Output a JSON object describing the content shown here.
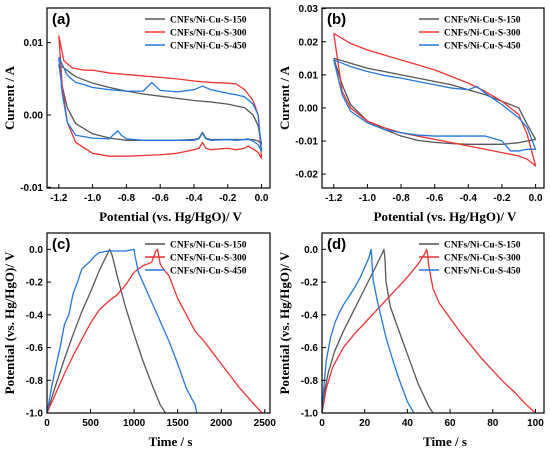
{
  "chart_data": [
    {
      "panel_label": "(a)",
      "type": "line",
      "xlabel": "Potential (vs. Hg/HgO)/ V",
      "ylabel": "Current / A",
      "xlim": [
        -1.27,
        0.05
      ],
      "ylim": [
        -0.0101,
        0.0148
      ],
      "xticks": [
        -1.2,
        -1.0,
        -0.8,
        -0.6,
        -0.4,
        -0.2,
        0.0
      ],
      "xtick_labels": [
        "-1.2",
        "-1.0",
        "-0.8",
        "-0.6",
        "-0.4",
        "-0.2",
        "0.0"
      ],
      "yticks": [
        -0.01,
        0.0,
        0.01
      ],
      "ytick_labels": [
        "-0.01",
        "0.00",
        "0.01"
      ],
      "legend_position": "top-right",
      "series": [
        {
          "name": "CNFs/Ni-Cu-S-150",
          "color": "#555555",
          "x": [
            -1.2,
            -1.1,
            -1.0,
            -0.9,
            -0.8,
            -0.7,
            -0.6,
            -0.5,
            -0.4,
            -0.3,
            -0.2,
            -0.1,
            -0.05,
            -0.02,
            0.0,
            0.0,
            -0.02,
            -0.05,
            -0.1,
            -0.2,
            -0.3,
            -0.33,
            -0.35,
            -0.37,
            -0.4,
            -0.5,
            -0.6,
            -0.7,
            -0.8,
            -0.9,
            -1.0,
            -1.1,
            -1.15,
            -1.18,
            -1.2
          ],
          "y": [
            0.007,
            0.0053,
            0.0044,
            0.0038,
            0.0033,
            0.0029,
            0.0026,
            0.0023,
            0.002,
            0.0018,
            0.0015,
            0.001,
            0.0,
            -0.0015,
            -0.004,
            -0.004,
            -0.0036,
            -0.0034,
            -0.0034,
            -0.0034,
            -0.0034,
            -0.0032,
            -0.0024,
            -0.0032,
            -0.0034,
            -0.0035,
            -0.0035,
            -0.0035,
            -0.0035,
            -0.0032,
            -0.0026,
            -0.0012,
            0.001,
            0.004,
            0.007
          ]
        },
        {
          "name": "CNFs/Ni-Cu-S-300",
          "color": "#ee3333",
          "x": [
            -1.2,
            -1.17,
            -1.12,
            -1.05,
            -1.0,
            -0.9,
            -0.8,
            -0.7,
            -0.6,
            -0.5,
            -0.4,
            -0.3,
            -0.2,
            -0.15,
            -0.1,
            -0.05,
            -0.02,
            0.0,
            0.0,
            -0.02,
            -0.05,
            -0.08,
            -0.1,
            -0.15,
            -0.2,
            -0.3,
            -0.33,
            -0.35,
            -0.37,
            -0.4,
            -0.5,
            -0.6,
            -0.7,
            -0.8,
            -0.9,
            -1.0,
            -1.1,
            -1.15,
            -1.18,
            -1.2
          ],
          "y": [
            0.011,
            0.0075,
            0.0065,
            0.0062,
            0.0062,
            0.0058,
            0.0056,
            0.0054,
            0.0052,
            0.005,
            0.0047,
            0.0045,
            0.0044,
            0.0043,
            0.0035,
            0.002,
            0.0,
            -0.006,
            -0.006,
            -0.0052,
            -0.0047,
            -0.0043,
            -0.0046,
            -0.0048,
            -0.0046,
            -0.0048,
            -0.0046,
            -0.0038,
            -0.0046,
            -0.0048,
            -0.0053,
            -0.0055,
            -0.0056,
            -0.0057,
            -0.0057,
            -0.0053,
            -0.0038,
            -0.001,
            0.004,
            0.011
          ]
        },
        {
          "name": "CNFs/Ni-Cu-S-450",
          "color": "#2277dd",
          "x": [
            -1.2,
            -1.15,
            -1.1,
            -1.05,
            -1.0,
            -0.9,
            -0.8,
            -0.7,
            -0.65,
            -0.6,
            -0.5,
            -0.4,
            -0.35,
            -0.3,
            -0.2,
            -0.15,
            -0.1,
            -0.05,
            -0.02,
            0.0,
            0.0,
            -0.02,
            -0.05,
            -0.08,
            -0.1,
            -0.15,
            -0.2,
            -0.3,
            -0.33,
            -0.35,
            -0.37,
            -0.4,
            -0.5,
            -0.6,
            -0.7,
            -0.8,
            -0.83,
            -0.85,
            -0.88,
            -0.9,
            -1.0,
            -1.1,
            -1.15,
            -1.18,
            -1.2
          ],
          "y": [
            0.008,
            0.0055,
            0.0045,
            0.0042,
            0.0038,
            0.0035,
            0.0033,
            0.0033,
            0.0045,
            0.0034,
            0.0032,
            0.0035,
            0.004,
            0.0035,
            0.003,
            0.0028,
            0.0025,
            0.0015,
            0.0,
            -0.005,
            -0.005,
            -0.0041,
            -0.0036,
            -0.0033,
            -0.0034,
            -0.0035,
            -0.0034,
            -0.0035,
            -0.0033,
            -0.0025,
            -0.0033,
            -0.0035,
            -0.0035,
            -0.0035,
            -0.0035,
            -0.0033,
            -0.0028,
            -0.0022,
            -0.0028,
            -0.0033,
            -0.0032,
            -0.0028,
            -0.001,
            0.003,
            0.008
          ]
        }
      ]
    },
    {
      "panel_label": "(b)",
      "type": "line",
      "xlabel": "Potential (vs. Hg/HgO)/ V",
      "ylabel": "Current / A",
      "xlim": [
        -1.27,
        0.05
      ],
      "ylim": [
        -0.0242,
        0.0302
      ],
      "xticks": [
        -1.2,
        -1.0,
        -0.8,
        -0.6,
        -0.4,
        -0.2,
        0.0
      ],
      "xtick_labels": [
        "-1.2",
        "-1.0",
        "-0.8",
        "-0.6",
        "-0.4",
        "-0.2",
        "0.0"
      ],
      "yticks": [
        -0.02,
        -0.01,
        0.0,
        0.01,
        0.02,
        0.03
      ],
      "ytick_labels": [
        "-0.02",
        "-0.01",
        "0.00",
        "0.01",
        "0.02",
        "0.03"
      ],
      "legend_position": "top-right",
      "series": [
        {
          "name": "CNFs/Ni-Cu-S-150",
          "color": "#555555",
          "x": [
            -1.2,
            -1.1,
            -1.0,
            -0.9,
            -0.8,
            -0.7,
            -0.6,
            -0.5,
            -0.4,
            -0.3,
            -0.2,
            -0.1,
            -0.05,
            0.0,
            0.0,
            -0.1,
            -0.2,
            -0.3,
            -0.4,
            -0.5,
            -0.6,
            -0.7,
            -0.8,
            -0.9,
            -1.0,
            -1.1,
            -1.15,
            -1.2
          ],
          "y": [
            0.015,
            0.0135,
            0.012,
            0.011,
            0.01,
            0.009,
            0.008,
            0.007,
            0.0055,
            0.004,
            0.002,
            0.0,
            -0.005,
            -0.0095,
            -0.0095,
            -0.0105,
            -0.011,
            -0.011,
            -0.011,
            -0.0108,
            -0.0104,
            -0.0098,
            -0.0085,
            -0.0065,
            -0.004,
            0.001,
            0.007,
            0.015
          ]
        },
        {
          "name": "CNFs/Ni-Cu-S-300",
          "color": "#ee3333",
          "x": [
            -1.2,
            -1.1,
            -1.0,
            -0.9,
            -0.8,
            -0.7,
            -0.6,
            -0.5,
            -0.4,
            -0.3,
            -0.2,
            -0.1,
            -0.05,
            0.0,
            0.0,
            -0.05,
            -0.1,
            -0.2,
            -0.3,
            -0.4,
            -0.5,
            -0.6,
            -0.7,
            -0.8,
            -0.9,
            -1.0,
            -1.1,
            -1.15,
            -1.2
          ],
          "y": [
            0.0225,
            0.0195,
            0.0175,
            0.016,
            0.0145,
            0.013,
            0.0115,
            0.0095,
            0.0075,
            0.005,
            0.002,
            -0.002,
            -0.008,
            -0.0175,
            -0.0175,
            -0.0155,
            -0.0145,
            -0.0135,
            -0.0125,
            -0.0115,
            -0.0105,
            -0.0095,
            -0.0085,
            -0.0075,
            -0.006,
            -0.004,
            0.0,
            0.005,
            0.0225
          ]
        },
        {
          "name": "CNFs/Ni-Cu-S-450",
          "color": "#2277dd",
          "x": [
            -1.2,
            -1.1,
            -1.0,
            -0.9,
            -0.8,
            -0.7,
            -0.6,
            -0.5,
            -0.4,
            -0.35,
            -0.3,
            -0.2,
            -0.15,
            -0.1,
            -0.05,
            0.0,
            0.0,
            -0.05,
            -0.1,
            -0.15,
            -0.2,
            -0.3,
            -0.4,
            -0.5,
            -0.6,
            -0.7,
            -0.8,
            -0.9,
            -1.0,
            -1.1,
            -1.15,
            -1.2
          ],
          "y": [
            0.0145,
            0.0125,
            0.011,
            0.0098,
            0.009,
            0.008,
            0.007,
            0.006,
            0.0055,
            0.0065,
            0.0045,
            0.001,
            -0.001,
            -0.003,
            -0.006,
            -0.0125,
            -0.0125,
            -0.0125,
            -0.013,
            -0.013,
            -0.01,
            -0.0085,
            -0.0085,
            -0.0085,
            -0.0085,
            -0.0082,
            -0.0075,
            -0.0065,
            -0.0045,
            -0.001,
            0.004,
            0.0145
          ]
        }
      ]
    },
    {
      "panel_label": "(c)",
      "type": "line",
      "xlabel": "Time / s",
      "ylabel": "Potential (vs. Hg/HgO)/ V",
      "xlim": [
        0,
        2560
      ],
      "ylim": [
        -1.0,
        0.1
      ],
      "xticks": [
        0,
        500,
        1000,
        1500,
        2000,
        2500
      ],
      "xtick_labels": [
        "0",
        "500",
        "1000",
        "1500",
        "2000",
        "2500"
      ],
      "yticks": [
        -1.0,
        -0.8,
        -0.6,
        -0.4,
        -0.2,
        0.0
      ],
      "ytick_labels": [
        "-1.0",
        "-0.8",
        "-0.6",
        "-0.4",
        "-0.2",
        "0.0"
      ],
      "legend_position": "top-right",
      "series": [
        {
          "name": "CNFs/Ni-Cu-S-150",
          "color": "#555555",
          "x": [
            0,
            100,
            200,
            300,
            400,
            500,
            600,
            700,
            720,
            750,
            800,
            900,
            1000,
            1100,
            1200,
            1300,
            1360
          ],
          "y": [
            -1.0,
            -0.83,
            -0.67,
            -0.52,
            -0.38,
            -0.26,
            -0.13,
            -0.02,
            0.0,
            -0.04,
            -0.15,
            -0.35,
            -0.52,
            -0.68,
            -0.82,
            -0.95,
            -1.0
          ]
        },
        {
          "name": "CNFs/Ni-Cu-S-300",
          "color": "#ee3333",
          "x": [
            0,
            100,
            200,
            300,
            400,
            500,
            600,
            700,
            800,
            900,
            1000,
            1100,
            1200,
            1250,
            1270,
            1300,
            1350,
            1400,
            1500,
            1600,
            1700,
            1800,
            1900,
            2000,
            2100,
            2200,
            2300,
            2400,
            2470
          ],
          "y": [
            -1.0,
            -0.88,
            -0.76,
            -0.65,
            -0.55,
            -0.45,
            -0.37,
            -0.32,
            -0.28,
            -0.22,
            -0.14,
            -0.1,
            -0.08,
            -0.01,
            0.0,
            -0.09,
            -0.13,
            -0.16,
            -0.3,
            -0.4,
            -0.5,
            -0.56,
            -0.63,
            -0.7,
            -0.77,
            -0.84,
            -0.9,
            -0.96,
            -1.0
          ]
        },
        {
          "name": "CNFs/Ni-Cu-S-450",
          "color": "#2277dd",
          "x": [
            0,
            50,
            100,
            150,
            200,
            250,
            300,
            350,
            400,
            500,
            550,
            600,
            700,
            800,
            900,
            1000,
            1010,
            1050,
            1100,
            1200,
            1300,
            1400,
            1500,
            1600,
            1700,
            1720
          ],
          "y": [
            -1.0,
            -0.85,
            -0.72,
            -0.6,
            -0.46,
            -0.4,
            -0.27,
            -0.2,
            -0.12,
            -0.07,
            -0.04,
            -0.02,
            -0.01,
            -0.01,
            -0.01,
            0.0,
            -0.04,
            -0.14,
            -0.2,
            -0.32,
            -0.44,
            -0.56,
            -0.7,
            -0.85,
            -0.95,
            -1.0
          ]
        }
      ]
    },
    {
      "panel_label": "(d)",
      "type": "line",
      "xlabel": "Time / s",
      "ylabel": "Potential (vs. Hg/HgO)/ V",
      "xlim": [
        0,
        104
      ],
      "ylim": [
        -1.0,
        0.1
      ],
      "xticks": [
        0,
        20,
        40,
        60,
        80,
        100
      ],
      "xtick_labels": [
        "0",
        "20",
        "40",
        "60",
        "80",
        "100"
      ],
      "yticks": [
        -1.0,
        -0.8,
        -0.6,
        -0.4,
        -0.2,
        0.0
      ],
      "ytick_labels": [
        "-1.0",
        "-0.8",
        "-0.6",
        "-0.4",
        "-0.2",
        "0.0"
      ],
      "legend_position": "top-right",
      "series": [
        {
          "name": "CNFs/Ni-Cu-S-150",
          "color": "#555555",
          "x": [
            0,
            1,
            3,
            6,
            10,
            15,
            20,
            25,
            28,
            29,
            29.5,
            30,
            32,
            35,
            40,
            45,
            50,
            52
          ],
          "y": [
            -1.0,
            -0.88,
            -0.75,
            -0.62,
            -0.5,
            -0.37,
            -0.24,
            -0.11,
            -0.03,
            0.0,
            -0.06,
            -0.2,
            -0.35,
            -0.46,
            -0.64,
            -0.82,
            -0.96,
            -1.0
          ]
        },
        {
          "name": "CNFs/Ni-Cu-S-300",
          "color": "#ee3333",
          "x": [
            0,
            2,
            5,
            10,
            15,
            20,
            25,
            30,
            35,
            40,
            45,
            48,
            49,
            49.5,
            50,
            52,
            55,
            60,
            65,
            70,
            75,
            80,
            85,
            90,
            95,
            100
          ],
          "y": [
            -1.0,
            -0.85,
            -0.72,
            -0.6,
            -0.52,
            -0.45,
            -0.38,
            -0.31,
            -0.24,
            -0.17,
            -0.09,
            -0.03,
            0.0,
            -0.03,
            -0.1,
            -0.24,
            -0.33,
            -0.42,
            -0.51,
            -0.59,
            -0.67,
            -0.74,
            -0.81,
            -0.87,
            -0.94,
            -1.0
          ]
        },
        {
          "name": "CNFs/Ni-Cu-S-450",
          "color": "#2277dd",
          "x": [
            0,
            1,
            2,
            4,
            6,
            8,
            10,
            12,
            15,
            18,
            20,
            22,
            23,
            23.3,
            23.6,
            24,
            26,
            28,
            30,
            33,
            36,
            40,
            43
          ],
          "y": [
            -1.0,
            -0.82,
            -0.68,
            -0.54,
            -0.45,
            -0.39,
            -0.34,
            -0.3,
            -0.24,
            -0.17,
            -0.11,
            -0.05,
            0.0,
            -0.05,
            -0.12,
            -0.19,
            -0.32,
            -0.43,
            -0.54,
            -0.67,
            -0.79,
            -0.93,
            -1.0
          ]
        }
      ]
    }
  ]
}
